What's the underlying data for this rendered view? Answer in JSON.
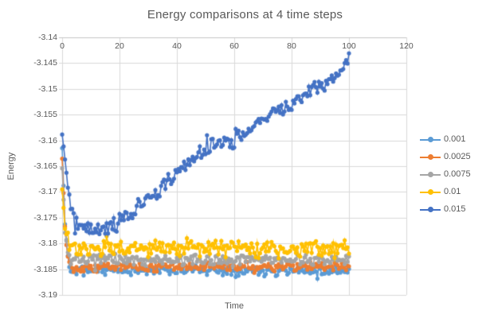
{
  "chart_title": "Energy comparisons at 4 time steps",
  "chart_data": {
    "type": "scatter",
    "title": "Energy comparisons at 4 time steps",
    "xlabel": "Time",
    "ylabel": "Energy",
    "grid": true,
    "legend_position": "right",
    "x_axis": {
      "min": 0,
      "max": 120,
      "tick_step": 20,
      "ticks": [
        "0",
        "20",
        "40",
        "60",
        "80",
        "100",
        "120"
      ]
    },
    "y_axis": {
      "min": -3.19,
      "max": -3.14,
      "tick_step": 0.005,
      "ticks": [
        "-3.14",
        "-3.145",
        "-3.15",
        "-3.155",
        "-3.16",
        "-3.165",
        "-3.17",
        "-3.175",
        "-3.18",
        "-3.185",
        "-3.19"
      ]
    },
    "t_start": 0,
    "t_end": 100,
    "t_step": 0.5,
    "series": [
      {
        "name": "0.001",
        "color": "#5B9BD5",
        "noise": 0.0007,
        "seed": 11,
        "trend": [
          [
            0,
            -3.1615
          ],
          [
            0.5,
            -3.169
          ],
          [
            1,
            -3.176
          ],
          [
            2,
            -3.1825
          ],
          [
            3,
            -3.1852
          ],
          [
            100,
            -3.1852
          ]
        ]
      },
      {
        "name": "0.0025",
        "color": "#ED7D31",
        "noise": 0.00068,
        "seed": 22,
        "trend": [
          [
            0,
            -3.1635
          ],
          [
            0.5,
            -3.17
          ],
          [
            1,
            -3.1768
          ],
          [
            2,
            -3.1822
          ],
          [
            3,
            -3.1845
          ],
          [
            100,
            -3.1845
          ]
        ]
      },
      {
        "name": "0.0075",
        "color": "#A5A5A5",
        "noise": 0.00078,
        "seed": 33,
        "trend": [
          [
            0,
            -3.1655
          ],
          [
            0.5,
            -3.1712
          ],
          [
            1,
            -3.1778
          ],
          [
            2,
            -3.1818
          ],
          [
            3,
            -3.1832
          ],
          [
            100,
            -3.1832
          ]
        ]
      },
      {
        "name": "0.01",
        "color": "#FFC000",
        "noise": 0.0013,
        "seed": 44,
        "trend": [
          [
            0,
            -3.1695
          ],
          [
            0.5,
            -3.1735
          ],
          [
            1,
            -3.177
          ],
          [
            2,
            -3.1796
          ],
          [
            3.5,
            -3.1809
          ],
          [
            100,
            -3.1809
          ]
        ]
      },
      {
        "name": "0.015",
        "color": "#4472C4",
        "noise": 0.0012,
        "seed": 55,
        "trend": [
          [
            0,
            -3.159
          ],
          [
            0.5,
            -3.161
          ],
          [
            1,
            -3.1635
          ],
          [
            2,
            -3.168
          ],
          [
            3,
            -3.172
          ],
          [
            4.5,
            -3.1755
          ],
          [
            7,
            -3.1766
          ],
          [
            12,
            -3.1772
          ],
          [
            17,
            -3.1767
          ],
          [
            20,
            -3.1757
          ],
          [
            25,
            -3.1737
          ],
          [
            30,
            -3.1713
          ],
          [
            35,
            -3.1688
          ],
          [
            40,
            -3.1663
          ],
          [
            45,
            -3.164
          ],
          [
            50,
            -3.1618
          ],
          [
            55,
            -3.1608
          ],
          [
            60,
            -3.1597
          ],
          [
            65,
            -3.1578
          ],
          [
            70,
            -3.156
          ],
          [
            75,
            -3.1544
          ],
          [
            80,
            -3.1528
          ],
          [
            85,
            -3.1512
          ],
          [
            90,
            -3.1496
          ],
          [
            95,
            -3.1474
          ],
          [
            98,
            -3.146
          ],
          [
            100,
            -3.1438
          ]
        ]
      }
    ],
    "legend": {
      "items": [
        {
          "label": "0.001",
          "color": "#5B9BD5"
        },
        {
          "label": "0.0025",
          "color": "#ED7D31"
        },
        {
          "label": "0.0075",
          "color": "#A5A5A5"
        },
        {
          "label": "0.01",
          "color": "#FFC000"
        },
        {
          "label": "0.015",
          "color": "#4472C4"
        }
      ]
    },
    "colors": {
      "gridline": "#D9D9D9",
      "axis_line": "#C6C6C6",
      "text": "#595959"
    }
  }
}
